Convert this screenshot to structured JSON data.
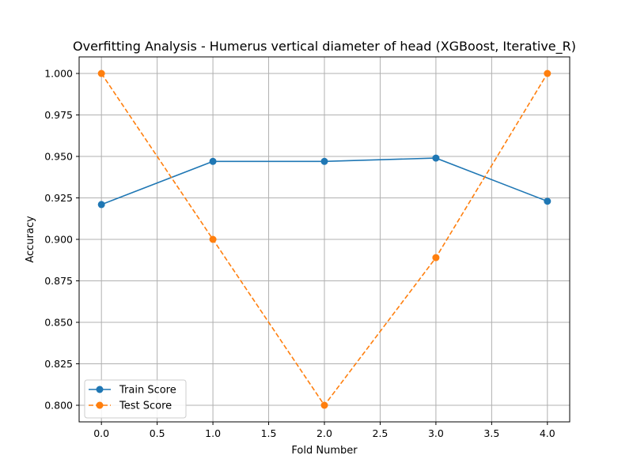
{
  "chart_data": {
    "type": "line",
    "title": "Overfitting Analysis - Humerus vertical diameter of head (XGBoost, Iterative_R)",
    "xlabel": "Fold Number",
    "ylabel": "Accuracy",
    "x": [
      0,
      1,
      2,
      3,
      4
    ],
    "xlim": [
      -0.2,
      4.2
    ],
    "ylim": [
      0.79,
      1.01
    ],
    "xticks": [
      0.0,
      0.5,
      1.0,
      1.5,
      2.0,
      2.5,
      3.0,
      3.5,
      4.0
    ],
    "xtick_labels": [
      "0.0",
      "0.5",
      "1.0",
      "1.5",
      "2.0",
      "2.5",
      "3.0",
      "3.5",
      "4.0"
    ],
    "yticks": [
      0.8,
      0.825,
      0.85,
      0.875,
      0.9,
      0.925,
      0.95,
      0.975,
      1.0
    ],
    "ytick_labels": [
      "0.800",
      "0.825",
      "0.850",
      "0.875",
      "0.900",
      "0.925",
      "0.950",
      "0.975",
      "1.000"
    ],
    "grid": true,
    "legend_position": "lower-left",
    "series": [
      {
        "name": "Train Score",
        "values": [
          0.921,
          0.947,
          0.947,
          0.949,
          0.923
        ],
        "color": "#1f77b4",
        "line_style": "solid",
        "marker": "circle"
      },
      {
        "name": "Test Score",
        "values": [
          1.0,
          0.9,
          0.8,
          0.889,
          1.0
        ],
        "color": "#ff7f0e",
        "line_style": "dashed",
        "marker": "circle"
      }
    ]
  }
}
